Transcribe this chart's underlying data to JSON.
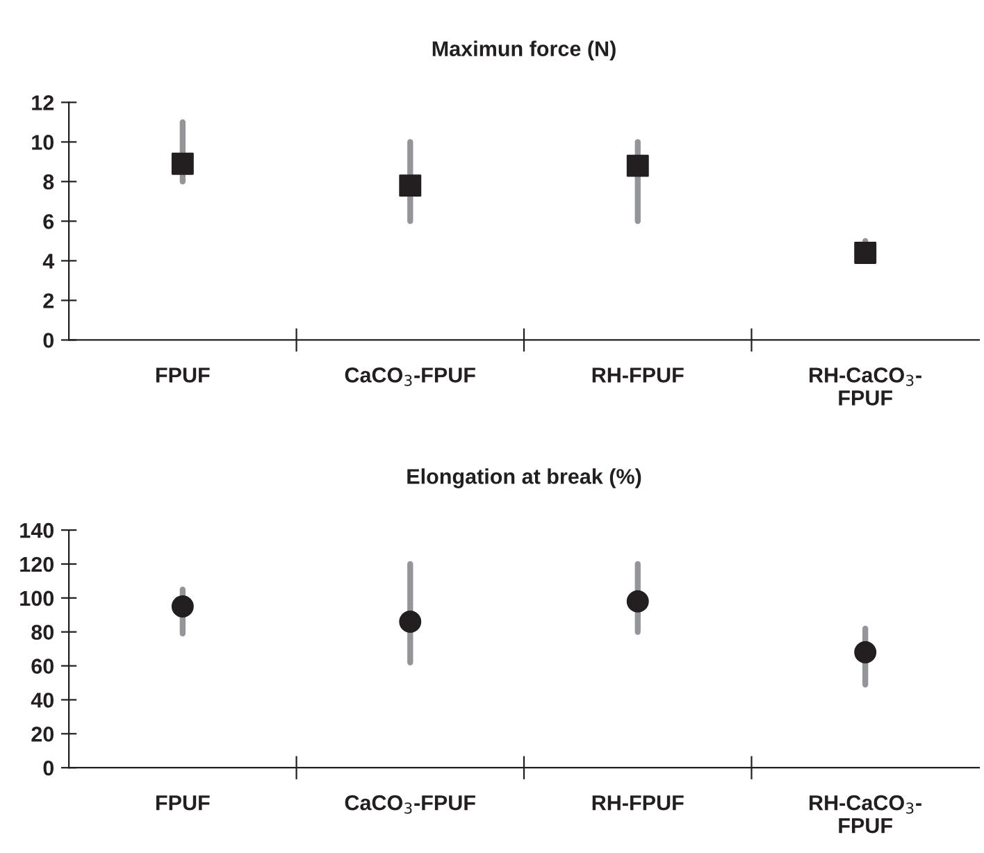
{
  "chart_data": [
    {
      "type": "scatter",
      "title": "Maximun force (N)",
      "categories": [
        "FPUF",
        "CaCO$_{3}$-FPUF",
        "RH-FPUF",
        "RH-CaCO$_{3}$-FPUF"
      ],
      "series": [
        {
          "color": "#231f20",
          "values": [
            8.9,
            7.8,
            8.8,
            4.4
          ],
          "errors": [
            [
              8,
              11
            ],
            [
              6,
              10
            ],
            [
              6,
              10
            ],
            [
              4,
              5
            ]
          ]
        }
      ],
      "marker": "square",
      "ylim": [
        0,
        12
      ],
      "yticks": [
        0,
        2,
        4,
        6,
        8,
        10,
        12
      ],
      "grid": false,
      "legend": false
    },
    {
      "type": "scatter",
      "title": "Elongation at break (%)",
      "categories": [
        "FPUF",
        "CaCO$_{3}$-FPUF",
        "RH-FPUF",
        "RH-CaCO$_{3}$-FPUF"
      ],
      "series": [
        {
          "color": "#231f20",
          "values": [
            95,
            86,
            98,
            68
          ],
          "errors": [
            [
              79,
              105
            ],
            [
              62,
              120
            ],
            [
              80,
              120
            ],
            [
              49,
              82
            ]
          ]
        }
      ],
      "marker": "circle",
      "ylim": [
        0,
        140
      ],
      "yticks": [
        0,
        20,
        40,
        60,
        80,
        100,
        120,
        140
      ],
      "grid": false,
      "legend": false
    }
  ]
}
